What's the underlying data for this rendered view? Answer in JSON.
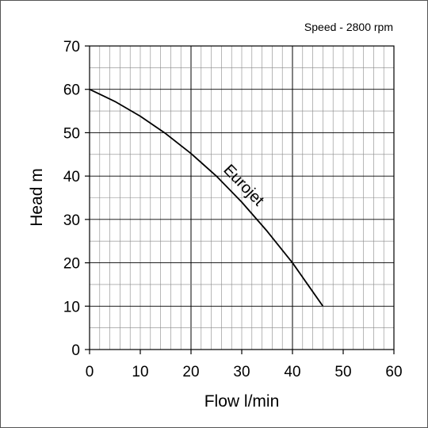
{
  "chart_data": {
    "type": "line",
    "annotation": "Speed - 2800 rpm",
    "xlabel": "Flow l/min",
    "ylabel": "Head m",
    "xlim": [
      0,
      60
    ],
    "ylim": [
      0,
      70
    ],
    "x_ticks": [
      0,
      10,
      20,
      30,
      40,
      50,
      60
    ],
    "y_ticks": [
      0,
      10,
      20,
      30,
      40,
      50,
      60,
      70
    ],
    "grid": true,
    "series": [
      {
        "name": "Eurojet",
        "x": [
          0,
          5,
          10,
          15,
          20,
          25,
          30,
          35,
          40,
          43,
          46
        ],
        "y": [
          60,
          57.2,
          53.8,
          49.8,
          45.2,
          40.0,
          34.0,
          27.3,
          20.0,
          15.0,
          10.0
        ]
      }
    ],
    "colors": {
      "grid": "#888888",
      "major_grid": "#000000",
      "line": "#000000"
    }
  }
}
